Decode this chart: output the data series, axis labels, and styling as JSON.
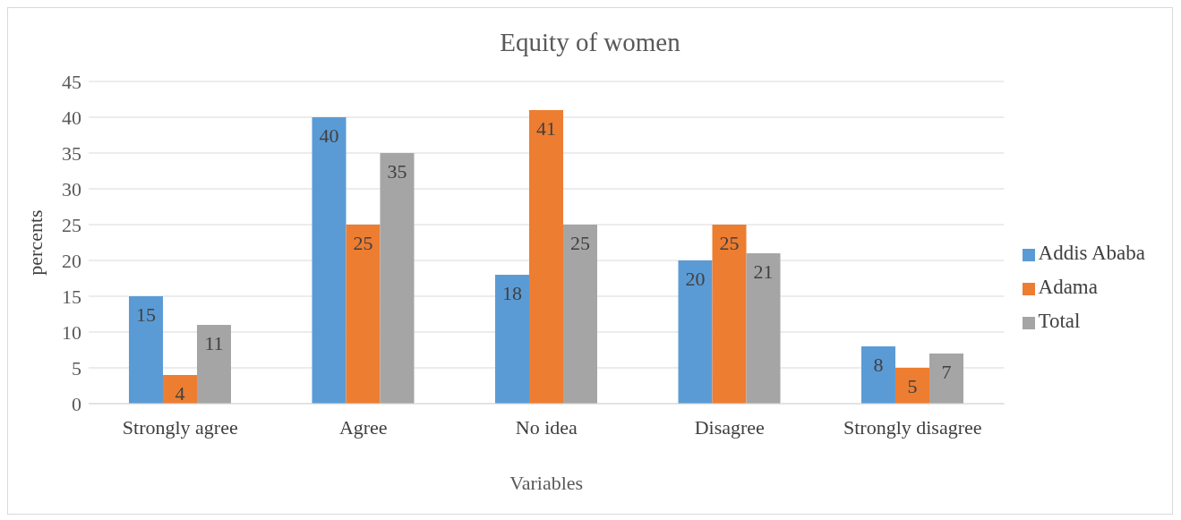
{
  "chart_data": {
    "type": "bar",
    "title": "Equity of women",
    "xlabel": "Variables",
    "ylabel": "percents",
    "categories": [
      "Strongly agree",
      "Agree",
      "No idea",
      "Disagree",
      "Strongly disagree"
    ],
    "series": [
      {
        "name": "Addis Ababa",
        "color": "#5b9bd5",
        "values": [
          15,
          40,
          18,
          20,
          8
        ]
      },
      {
        "name": "Adama",
        "color": "#ed7d31",
        "values": [
          4,
          25,
          41,
          25,
          5
        ]
      },
      {
        "name": "Total",
        "color": "#a5a5a5",
        "values": [
          11,
          35,
          25,
          21,
          7
        ]
      }
    ],
    "ylim": [
      0,
      45
    ],
    "yticks": [
      0,
      5,
      10,
      15,
      20,
      25,
      30,
      35,
      40,
      45
    ],
    "grid": "y",
    "legend": "right",
    "data_labels": true
  }
}
